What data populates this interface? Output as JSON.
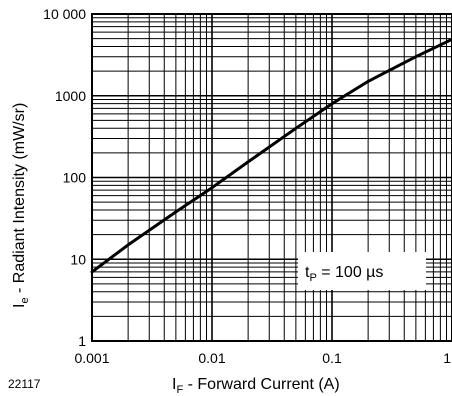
{
  "figure_id": "22117",
  "chart_data": {
    "type": "line",
    "title": "",
    "xscale": "log",
    "yscale": "log",
    "xlim": [
      0.001,
      1
    ],
    "ylim": [
      1,
      10000
    ],
    "grid": true,
    "xlabel": {
      "main": "I",
      "sub": "F",
      "rest": " - Forward Current (A)"
    },
    "ylabel": {
      "main": "I",
      "sub": "e",
      "rest": " - Radiant Intensity (mW/sr)"
    },
    "x_tick_labels": [
      "0.001",
      "0.01",
      "0.1",
      "1"
    ],
    "y_tick_labels": [
      "1",
      "10",
      "100",
      "1000",
      "10 000"
    ],
    "annotation": {
      "main": "t",
      "sub": "P",
      "rest": " = 100 µs"
    },
    "series": [
      {
        "x": [
          0.001,
          0.002,
          0.005,
          0.01,
          0.02,
          0.05,
          0.1,
          0.2,
          0.5,
          1
        ],
        "y": [
          7,
          15,
          38,
          75,
          155,
          400,
          800,
          1500,
          3000,
          4900
        ]
      }
    ]
  }
}
